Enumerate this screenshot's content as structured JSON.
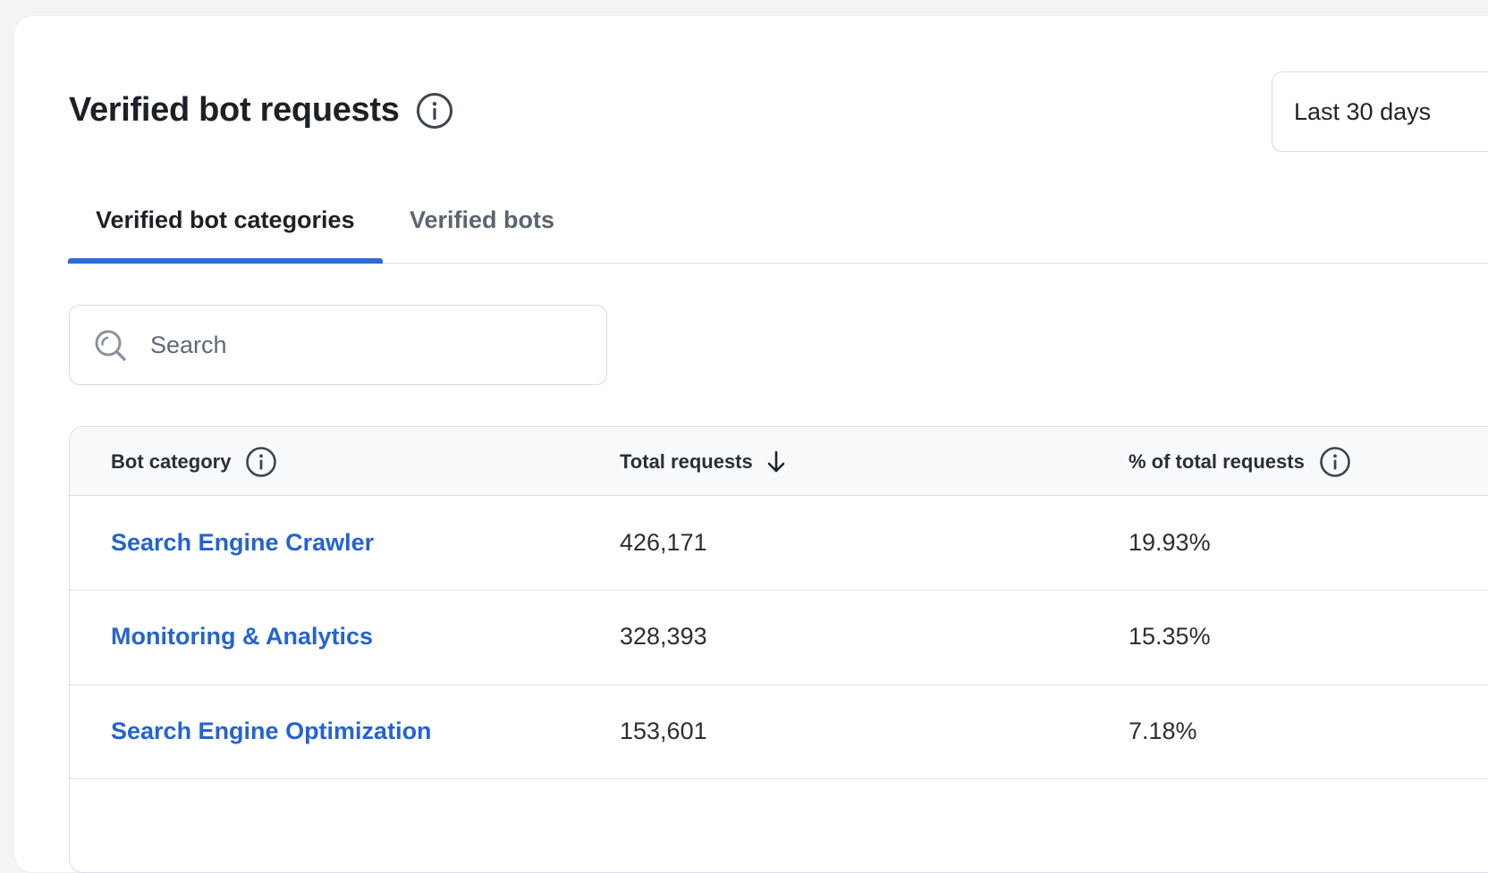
{
  "header": {
    "title": "Verified bot requests",
    "date_range": "Last 30 days"
  },
  "tabs": [
    {
      "label": "Verified bot categories",
      "active": true
    },
    {
      "label": "Verified bots",
      "active": false
    }
  ],
  "search": {
    "placeholder": "Search",
    "value": ""
  },
  "table": {
    "columns": [
      {
        "label": "Bot category",
        "icon": "info-icon"
      },
      {
        "label": "Total requests",
        "icon": "arrow-down-icon",
        "sorted": "descending"
      },
      {
        "label": "% of total requests",
        "icon": "info-icon"
      }
    ],
    "rows": [
      {
        "category": "Search Engine Crawler",
        "total": "426,171",
        "percent": "19.93%"
      },
      {
        "category": "Monitoring & Analytics",
        "total": "328,393",
        "percent": "15.35%"
      },
      {
        "category": "Search Engine Optimization",
        "total": "153,601",
        "percent": "7.18%"
      }
    ]
  },
  "colors": {
    "accent": "#2b6cd6",
    "link": "#2563d0",
    "page_bg": "#f3f4f6",
    "border": "#dcdfe3"
  }
}
